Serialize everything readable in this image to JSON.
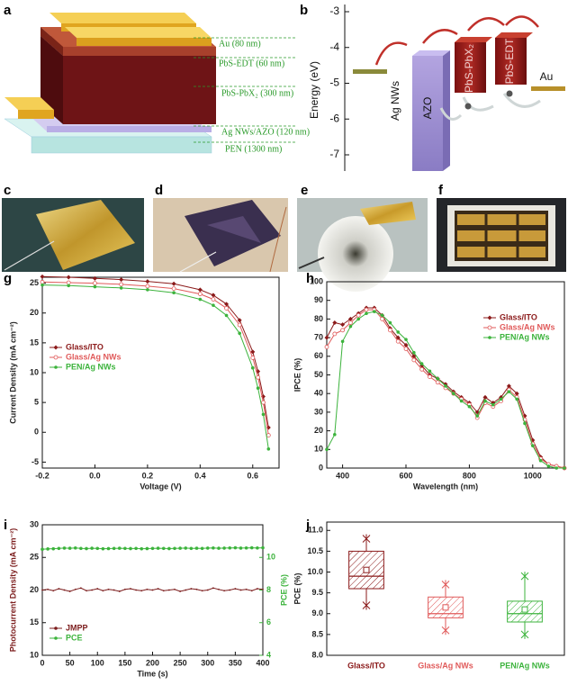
{
  "panel_labels": [
    "a",
    "b",
    "c",
    "d",
    "e",
    "f",
    "g",
    "h",
    "i",
    "j"
  ],
  "device_stack": {
    "layers": [
      "Au (80 nm)",
      "PbS-EDT (60 nm)",
      "PbS-PbX₂ (300 nm)",
      "Ag NWs/AZO (120 nm)",
      "PEN (1300 nm)"
    ]
  },
  "band_diagram": {
    "ylabel": "Energy (eV)",
    "yticks": [
      -3,
      -4,
      -5,
      -6,
      -7
    ],
    "materials": [
      "Ag NWs",
      "AZO",
      "PbS-PbX₂",
      "PbS-EDT",
      "Au"
    ]
  },
  "chart_data": [
    {
      "type": "line",
      "xlabel": "Voltage (V)",
      "ylabel": "Current Density (mA cm⁻²)",
      "x": [
        -0.2,
        -0.1,
        0,
        0.1,
        0.2,
        0.3,
        0.4,
        0.45,
        0.5,
        0.55,
        0.6,
        0.62,
        0.64,
        0.66
      ],
      "xlim": [
        -0.2,
        0.7
      ],
      "xticks": [
        -0.2,
        {
          "value": 0,
          "label": "0.0"
        },
        0.2,
        0.4,
        0.6
      ],
      "ylim": [
        -6,
        26
      ],
      "yticks": [
        -5,
        0,
        5,
        10,
        15,
        20,
        25
      ],
      "legend": "center left",
      "series": [
        {
          "name": "Glass/ITO",
          "color": "#8b1a1a",
          "marker": "diamond",
          "values": [
            26.1,
            26.0,
            25.8,
            25.6,
            25.3,
            24.9,
            23.9,
            23.0,
            21.5,
            18.8,
            13.5,
            10.2,
            6.0,
            0.8
          ]
        },
        {
          "name": "Glass/Ag NWs",
          "color": "#e05a5a",
          "marker": "open-circle",
          "values": [
            25.2,
            25.1,
            25.0,
            24.8,
            24.5,
            24.1,
            23.2,
            22.3,
            20.8,
            18.0,
            12.5,
            9.2,
            5.0,
            -0.5
          ]
        },
        {
          "name": "PEN/Ag NWs",
          "color": "#3cb33c",
          "marker": "circle",
          "values": [
            24.7,
            24.6,
            24.4,
            24.2,
            23.9,
            23.4,
            22.3,
            21.3,
            19.6,
            16.6,
            10.8,
            7.4,
            3.0,
            -2.8
          ]
        }
      ]
    },
    {
      "type": "line",
      "xlabel": "Wavelength (nm)",
      "ylabel": "IPCE (%)",
      "x": [
        350,
        375,
        400,
        425,
        450,
        475,
        500,
        525,
        550,
        575,
        600,
        625,
        650,
        675,
        700,
        725,
        750,
        775,
        800,
        825,
        850,
        875,
        900,
        925,
        950,
        975,
        1000,
        1025,
        1050,
        1075,
        1100
      ],
      "xlim": [
        350,
        1100
      ],
      "xticks": [
        400,
        600,
        800,
        1000
      ],
      "ylim": [
        0,
        100
      ],
      "yticks": [
        0,
        10,
        20,
        30,
        40,
        50,
        60,
        70,
        80,
        90,
        100
      ],
      "legend": "upper right",
      "series": [
        {
          "name": "Glass/ITO",
          "color": "#8b1a1a",
          "marker": "diamond",
          "values": [
            70,
            78,
            77,
            80,
            83,
            86,
            86,
            82,
            75,
            70,
            66,
            60,
            55,
            50,
            48,
            45,
            41,
            38,
            35,
            30,
            38,
            35,
            38,
            44,
            40,
            28,
            15,
            6,
            2,
            1,
            0
          ]
        },
        {
          "name": "Glass/Ag NWs",
          "color": "#e05a5a",
          "marker": "open-circle",
          "values": [
            65,
            72,
            74,
            78,
            82,
            85,
            85,
            80,
            74,
            68,
            64,
            58,
            53,
            49,
            46,
            43,
            40,
            37,
            34,
            27,
            35,
            33,
            36,
            42,
            38,
            26,
            13,
            5,
            2,
            1,
            0
          ]
        },
        {
          "name": "PEN/Ag NWs",
          "color": "#3cb33c",
          "marker": "circle",
          "values": [
            10,
            18,
            68,
            76,
            80,
            83,
            84,
            82,
            78,
            73,
            69,
            62,
            56,
            52,
            48,
            44,
            40,
            36,
            33,
            28,
            36,
            34,
            37,
            41,
            37,
            24,
            12,
            4,
            1,
            0,
            0
          ]
        }
      ]
    },
    {
      "type": "line",
      "xlabel": "Time (s)",
      "ylabel": "Photocurrent Density (mA cm⁻²)",
      "y2label": "PCE (%)",
      "x": [
        0,
        10,
        20,
        30,
        40,
        50,
        60,
        70,
        80,
        90,
        100,
        110,
        120,
        130,
        140,
        150,
        160,
        170,
        180,
        190,
        200,
        210,
        220,
        230,
        240,
        250,
        260,
        270,
        280,
        290,
        300,
        310,
        320,
        330,
        340,
        350,
        360,
        370,
        380,
        390,
        400
      ],
      "xlim": [
        0,
        400
      ],
      "xticks": [
        0,
        50,
        100,
        150,
        200,
        250,
        300,
        350,
        400
      ],
      "ylim": [
        10,
        30
      ],
      "yticks": [
        10,
        15,
        20,
        25,
        30
      ],
      "y2lim": [
        4,
        12
      ],
      "y2ticks": [
        4,
        6,
        8,
        10
      ],
      "legend": "lower left",
      "series": [
        {
          "name": "JMPP",
          "color": "#7b1c1c",
          "marker": "dot",
          "values": [
            20.0,
            20.1,
            19.9,
            20.2,
            20.0,
            19.8,
            20.1,
            20.3,
            19.9,
            20.0,
            20.2,
            19.9,
            20.1,
            20.0,
            19.8,
            20.1,
            20.2,
            20.0,
            19.9,
            20.1,
            20.0,
            20.2,
            19.9,
            20.0,
            20.1,
            19.8,
            20.0,
            20.2,
            20.1,
            19.9,
            20.0,
            20.3,
            20.1,
            19.9,
            20.0,
            20.2,
            20.0,
            20.1,
            19.9,
            20.2,
            20.1
          ]
        },
        {
          "name": "PCE",
          "color": "#3cb33c",
          "marker": "circle",
          "axis": "y2",
          "values": [
            10.5,
            10.52,
            10.53,
            10.55,
            10.57,
            10.56,
            10.58,
            10.55,
            10.54,
            10.56,
            10.55,
            10.53,
            10.54,
            10.55,
            10.56,
            10.55,
            10.54,
            10.55,
            10.53,
            10.54,
            10.55,
            10.56,
            10.55,
            10.54,
            10.55,
            10.56,
            10.57,
            10.55,
            10.56,
            10.55,
            10.57,
            10.58,
            10.56,
            10.57,
            10.58,
            10.59,
            10.57,
            10.58,
            10.59,
            10.58,
            10.59
          ]
        }
      ]
    },
    {
      "type": "box",
      "ylabel": "PCE (%)",
      "categories": [
        "Glass/ITO",
        "Glass/Ag NWs",
        "PEN/Ag NWs"
      ],
      "colors": [
        "#8b1a1a",
        "#e05a5a",
        "#3cb33c"
      ],
      "q1": [
        9.6,
        8.9,
        8.8
      ],
      "median": [
        9.9,
        9.0,
        9.0
      ],
      "q3": [
        10.5,
        9.4,
        9.3
      ],
      "mean": [
        10.05,
        9.15,
        9.1
      ],
      "min": [
        9.2,
        8.6,
        8.5
      ],
      "max": [
        10.8,
        9.7,
        9.9
      ],
      "ylim": [
        8,
        11.2
      ],
      "yticks": [
        {
          "value": 8,
          "label": "8.0"
        },
        8.5,
        {
          "value": 9,
          "label": "9.0"
        },
        9.5,
        {
          "value": 10,
          "label": "10.0"
        },
        10.5,
        {
          "value": 11,
          "label": "11.0"
        }
      ]
    }
  ]
}
